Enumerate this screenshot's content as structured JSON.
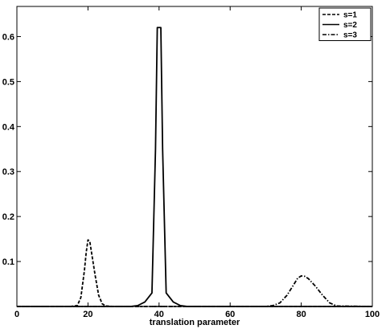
{
  "chart_data": {
    "type": "line",
    "xlabel": "translation parameter",
    "ylabel": "",
    "title": "",
    "xlim": [
      0,
      100
    ],
    "ylim": [
      0,
      0.667
    ],
    "xticks": [
      0,
      20,
      40,
      60,
      80,
      100
    ],
    "yticks": [
      0.1,
      0.2,
      0.3,
      0.4,
      0.5,
      0.6
    ],
    "grid": false,
    "legend_position": "top-right",
    "series": [
      {
        "name": "s=1",
        "style": "dashed",
        "color": "#000000",
        "x": [
          0,
          15,
          17,
          18,
          19,
          19.5,
          20,
          20.5,
          21,
          22,
          23,
          24,
          25,
          27,
          100
        ],
        "y": [
          0,
          0,
          0.002,
          0.02,
          0.08,
          0.12,
          0.148,
          0.145,
          0.12,
          0.07,
          0.025,
          0.006,
          0.001,
          0,
          0
        ]
      },
      {
        "name": "s=2",
        "style": "solid",
        "color": "#000000",
        "x": [
          0,
          32,
          34,
          36,
          37,
          38,
          39,
          39.5,
          40.5,
          41,
          42,
          43,
          44,
          46,
          48,
          100
        ],
        "y": [
          0,
          0,
          0.002,
          0.01,
          0.02,
          0.03,
          0.35,
          0.62,
          0.62,
          0.35,
          0.03,
          0.02,
          0.01,
          0.002,
          0,
          0
        ]
      },
      {
        "name": "s=3",
        "style": "dashdot",
        "color": "#000000",
        "x": [
          0,
          70,
          72,
          74,
          76,
          78,
          79,
          80,
          81,
          82,
          84,
          86,
          88,
          90,
          100
        ],
        "y": [
          0,
          0,
          0.002,
          0.008,
          0.025,
          0.05,
          0.063,
          0.068,
          0.067,
          0.062,
          0.045,
          0.025,
          0.008,
          0.001,
          0
        ]
      }
    ]
  }
}
